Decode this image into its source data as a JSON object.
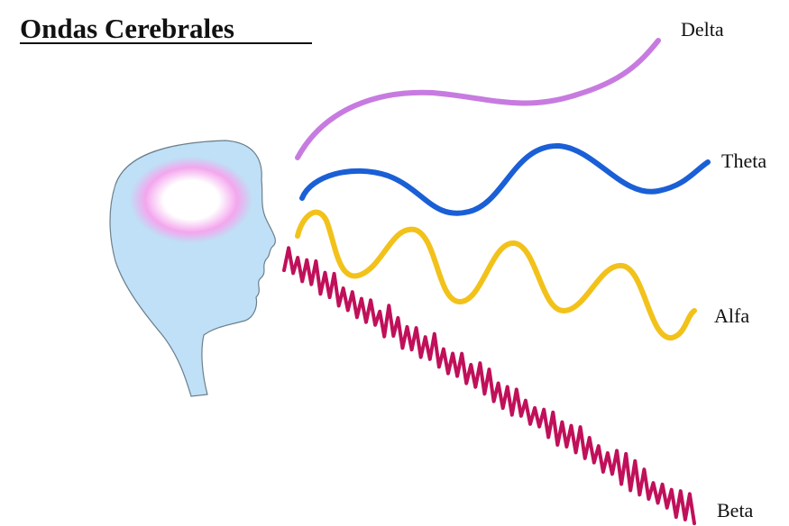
{
  "title": "Ondas Cerebrales",
  "waves": [
    {
      "label": "Delta"
    },
    {
      "label": "Theta"
    },
    {
      "label": "Alfa"
    },
    {
      "label": "Beta"
    }
  ]
}
